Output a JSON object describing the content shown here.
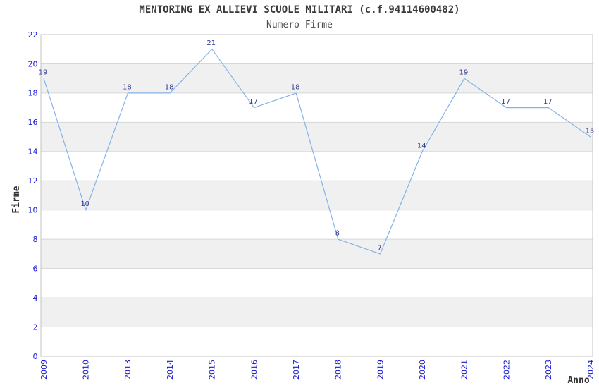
{
  "chart_data": {
    "type": "line",
    "title": "MENTORING EX ALLIEVI SCUOLE MILITARI (c.f.94114600482)",
    "subtitle": "Numero Firme",
    "xlabel": "Anno",
    "ylabel": "Firme",
    "categories": [
      "2009",
      "2010",
      "2013",
      "2014",
      "2015",
      "2016",
      "2017",
      "2018",
      "2019",
      "2020",
      "2021",
      "2022",
      "2023",
      "2024"
    ],
    "values": [
      19,
      10,
      18,
      18,
      21,
      17,
      18,
      8,
      7,
      14,
      19,
      17,
      17,
      15
    ],
    "ylim": [
      0,
      22
    ],
    "ytick_step": 2,
    "yticks": [
      0,
      2,
      4,
      6,
      8,
      10,
      12,
      14,
      16,
      18,
      20,
      22
    ],
    "grid": true,
    "alternating_bands": true,
    "legend": "none",
    "data_labels_shown": true,
    "colors": {
      "line": "#85b3e7",
      "tick_label": "#1818d2",
      "data_label": "#333a8c",
      "band": "#f0f0f0",
      "gridline": "#d7d7d7",
      "frame": "#c3c3c3",
      "title": "#3a3a3a",
      "subtitle": "#4d4d4d",
      "axis_title": "#333333",
      "background": "#ffffff"
    }
  }
}
